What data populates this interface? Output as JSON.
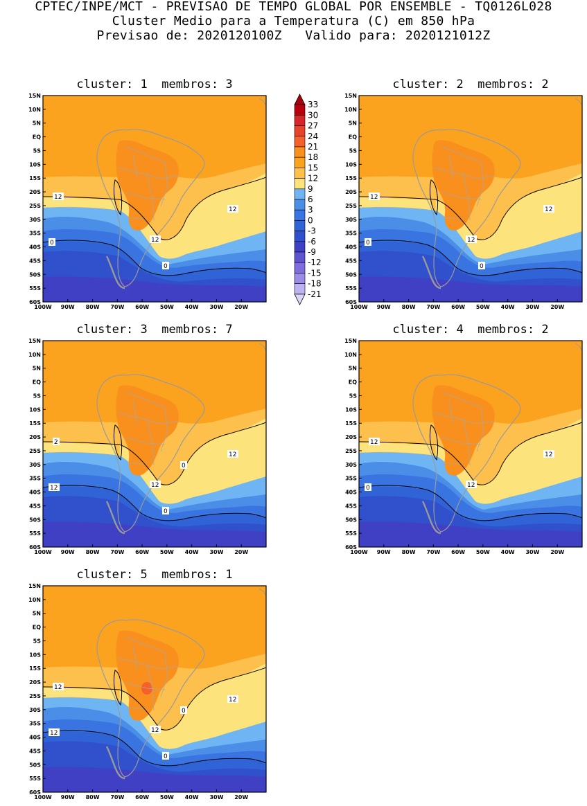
{
  "header": {
    "line1": "CPTEC/INPE/MCT - PREVISAO DE TEMPO GLOBAL POR ENSEMBLE - TQ0126L028",
    "line2": "Cluster Medio para a Temperatura (C) em 850 hPa",
    "line3": "Previsao de: 2020120100Z   Valido para: 2020121012Z"
  },
  "axes": {
    "lat_labels": [
      "15N",
      "10N",
      "5N",
      "EQ",
      "5S",
      "10S",
      "15S",
      "20S",
      "25S",
      "30S",
      "35S",
      "40S",
      "45S",
      "50S",
      "55S",
      "60S"
    ],
    "lon_labels": [
      "100W",
      "90W",
      "80W",
      "70W",
      "60W",
      "50W",
      "40W",
      "30W",
      "20W"
    ],
    "lat_range": [
      15,
      -60
    ],
    "lon_range": [
      -100,
      -10
    ]
  },
  "colorbar": {
    "labels": [
      "33",
      "30",
      "27",
      "24",
      "21",
      "18",
      "15",
      "12",
      "9",
      "6",
      "3",
      "0",
      "-3",
      "-6",
      "-9",
      "-12",
      "-15",
      "-18",
      "-21"
    ],
    "colors": [
      "#b8000e",
      "#d6262c",
      "#e6432d",
      "#f5602b",
      "#f98f1d",
      "#fba31e",
      "#fdc04c",
      "#fce37c",
      "#6fb5f3",
      "#4a8ee8",
      "#3a74e0",
      "#2f63d6",
      "#3150cc",
      "#4040c4",
      "#5e53d1",
      "#7d6de0",
      "#9c8ce8",
      "#beb2f0"
    ],
    "over_color": "#a8000b",
    "under_color": "#dcd6f8"
  },
  "panels": [
    {
      "title": "cluster: 1  membros: 3",
      "contour_labels": [
        "12",
        "12",
        "12",
        "0",
        "0"
      ]
    },
    {
      "title": "cluster: 2  membros: 2",
      "contour_labels": [
        "12",
        "12",
        "12",
        "0",
        "0"
      ]
    },
    {
      "title": "cluster: 3  membros: 7",
      "contour_labels": [
        "2",
        "12",
        "12",
        "12",
        "0",
        "0"
      ]
    },
    {
      "title": "cluster: 4  membros: 2",
      "contour_labels": [
        "12",
        "12",
        "12",
        "0"
      ]
    },
    {
      "title": "cluster: 5  membros: 1",
      "contour_labels": [
        "12",
        "12",
        "12",
        "12",
        "0",
        "0"
      ]
    }
  ]
}
